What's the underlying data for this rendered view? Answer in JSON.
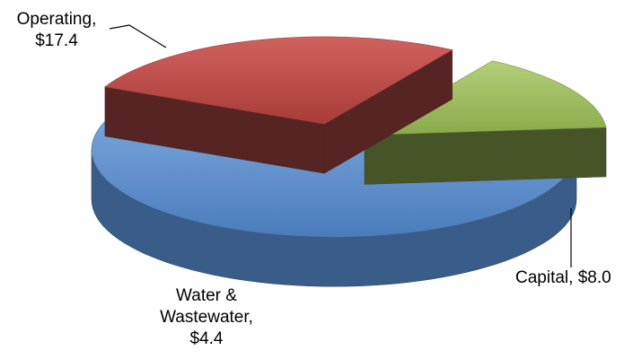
{
  "chart_data": {
    "type": "pie",
    "style": "3d-exploded",
    "title": "",
    "legend": "none",
    "slices": [
      {
        "key": "operating",
        "name": "Operating",
        "value": 17.4,
        "value_label": "$17.4",
        "color": "#4f81bd"
      },
      {
        "key": "capital",
        "name": "Capital",
        "value": 8.0,
        "value_label": "$8.0",
        "color": "#c0504d"
      },
      {
        "key": "water",
        "name": "Water & Wastewater",
        "value": 4.4,
        "value_label": "$4.4",
        "color": "#9bbb59"
      }
    ]
  },
  "labels": {
    "operating_line1": "Operating,",
    "operating_line2": "$17.4",
    "capital": "Capital, $8.0",
    "water_line1": "Water &",
    "water_line2": "Wastewater,",
    "water_line3": "$4.4"
  }
}
